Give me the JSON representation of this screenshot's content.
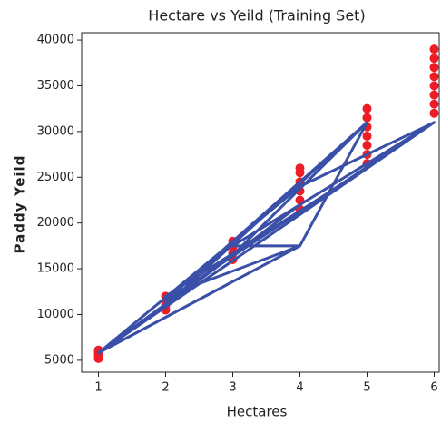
{
  "chart_data": {
    "type": "scatter",
    "title": "Hectare vs Yeild (Training Set)",
    "xlabel": "Hectares",
    "ylabel": "Paddy Yeild",
    "xlim": [
      0.75,
      6.25
    ],
    "ylim": [
      3700,
      40800
    ],
    "xticks": [
      1,
      2,
      3,
      4,
      5,
      6
    ],
    "yticks": [
      5000,
      10000,
      15000,
      20000,
      25000,
      30000,
      35000,
      40000
    ],
    "series": [
      {
        "type": "scatter",
        "color": "#ee1c25",
        "x": [
          1,
          1,
          1,
          1,
          2,
          2,
          2,
          2,
          3,
          3,
          3,
          3,
          4,
          4,
          4,
          4,
          4,
          4,
          5,
          5,
          5,
          5,
          5,
          5,
          5,
          6,
          6,
          6,
          6,
          6,
          6,
          6,
          6
        ],
        "values": [
          5200,
          5500,
          5800,
          6100,
          10500,
          11000,
          11500,
          12000,
          16000,
          16700,
          17400,
          18000,
          21500,
          22500,
          23500,
          24500,
          25500,
          26000,
          26500,
          27500,
          28500,
          29500,
          30500,
          31500,
          32500,
          32000,
          33000,
          34000,
          35000,
          36000,
          37000,
          38000,
          39000
        ]
      },
      {
        "type": "line",
        "color": "#3a4fa8",
        "x": [
          1,
          6,
          2,
          5,
          4,
          1,
          4,
          6,
          3,
          4,
          2,
          5,
          6,
          1,
          3,
          5,
          2,
          4,
          6,
          1
        ],
        "values": [
          5800,
          31000,
          11500,
          31000,
          17500,
          5800,
          24000,
          31000,
          17500,
          17500,
          12000,
          26000,
          31000,
          5800,
          16500,
          31000,
          11000,
          22000,
          31000,
          5800
        ]
      }
    ]
  }
}
